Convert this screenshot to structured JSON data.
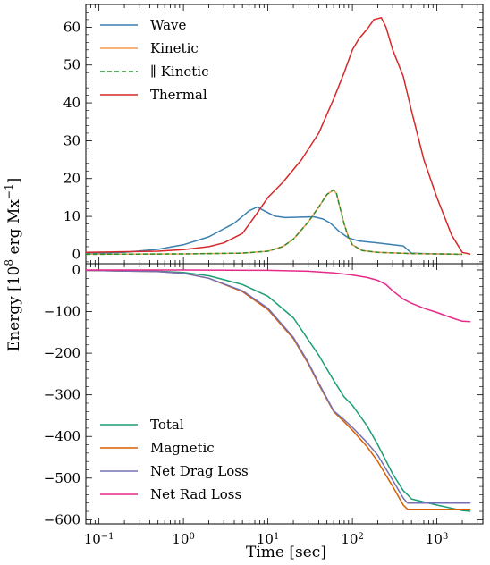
{
  "chart_data": [
    {
      "type": "line",
      "panel": "top",
      "xscale": "log",
      "xlim": [
        0.07,
        3500
      ],
      "ylim": [
        -2.5,
        66
      ],
      "yticks": [
        0,
        10,
        20,
        30,
        40,
        50,
        60
      ],
      "ytick_labels": [
        "0",
        "10",
        "20",
        "30",
        "40",
        "50",
        "60"
      ],
      "legend": "top-left",
      "series": [
        {
          "name": "Wave",
          "color": "#3a7fb0",
          "dash": "",
          "x": [
            0.07,
            0.2,
            0.5,
            1,
            2,
            4,
            6,
            7.5,
            9,
            12,
            16,
            25,
            35,
            45,
            55,
            70,
            90,
            120,
            200,
            400,
            450,
            500,
            700,
            1000,
            2000
          ],
          "y": [
            0.3,
            0.5,
            1.3,
            2.5,
            4.6,
            8.2,
            11.5,
            12.5,
            11.5,
            10.1,
            9.7,
            9.8,
            9.9,
            9.3,
            8.2,
            6.0,
            4.3,
            3.5,
            3.0,
            2.2,
            1.2,
            0.3,
            0.2,
            0.1,
            0.0
          ]
        },
        {
          "name": "Kinetic",
          "color": "#f39c4e",
          "dash": "",
          "x": [
            0.07,
            1,
            5,
            10,
            15,
            20,
            30,
            40,
            50,
            60,
            65,
            70,
            80,
            90,
            100,
            130,
            200,
            500,
            1000,
            2000
          ],
          "y": [
            0.0,
            0.1,
            0.3,
            0.8,
            2.0,
            4.0,
            8.5,
            12.5,
            15.8,
            17.0,
            16.0,
            13.0,
            8.0,
            4.5,
            2.5,
            1.0,
            0.5,
            0.2,
            0.1,
            0.0
          ]
        },
        {
          "name": "∥ Kinetic",
          "color": "#2e8b2e",
          "dash": "5,3",
          "x": [
            0.07,
            1,
            5,
            10,
            15,
            20,
            30,
            40,
            50,
            60,
            65,
            70,
            80,
            90,
            100,
            130,
            200,
            500,
            1000,
            2000
          ],
          "y": [
            0.0,
            0.1,
            0.3,
            0.8,
            2.0,
            4.0,
            8.5,
            12.5,
            15.8,
            17.0,
            16.0,
            13.0,
            8.0,
            4.5,
            2.5,
            1.0,
            0.5,
            0.2,
            0.1,
            0.0
          ]
        },
        {
          "name": "Thermal",
          "color": "#d62828",
          "dash": "",
          "x": [
            0.07,
            0.5,
            1,
            2,
            3,
            5,
            7,
            10,
            15,
            25,
            40,
            60,
            80,
            100,
            120,
            150,
            180,
            220,
            250,
            300,
            400,
            500,
            700,
            1000,
            1500,
            2000,
            2500
          ],
          "y": [
            0.5,
            0.8,
            1.2,
            2.0,
            3.0,
            5.5,
            10.0,
            15.0,
            19.0,
            25.0,
            32.0,
            41.0,
            48.0,
            54.0,
            57.0,
            59.5,
            62.0,
            62.5,
            60.0,
            54.0,
            47.0,
            38.0,
            25.0,
            15.0,
            5.0,
            0.5,
            0.0
          ]
        }
      ]
    },
    {
      "type": "line",
      "panel": "bottom",
      "xscale": "log",
      "xlim": [
        0.07,
        3500
      ],
      "ylim": [
        -610,
        15
      ],
      "yticks": [
        0,
        -100,
        -200,
        -300,
        -400,
        -500,
        -600
      ],
      "ytick_labels": [
        "0",
        "−100",
        "−200",
        "−300",
        "−400",
        "−500",
        "−600"
      ],
      "xticks": [
        0.1,
        1,
        10,
        100,
        1000
      ],
      "xtick_labels": [
        "10",
        "10",
        "10",
        "10",
        "10"
      ],
      "xtick_exponents": [
        "−1",
        "0",
        "1",
        "2",
        "3"
      ],
      "xlabel": "Time [sec]",
      "legend": "bottom-left",
      "series": [
        {
          "name": "Total",
          "color": "#1b9e77",
          "dash": "",
          "x": [
            0.07,
            0.5,
            1,
            2,
            5,
            10,
            20,
            40,
            60,
            80,
            100,
            150,
            200,
            300,
            400,
            450,
            500,
            1000,
            2000,
            2500
          ],
          "y": [
            -1,
            -3,
            -6,
            -14,
            -35,
            -63,
            -115,
            -205,
            -265,
            -305,
            -325,
            -375,
            -420,
            -490,
            -530,
            -540,
            -550,
            -565,
            -578,
            -580
          ]
        },
        {
          "name": "Magnetic",
          "color": "#d95f02",
          "dash": "",
          "x": [
            0.07,
            0.5,
            1,
            2,
            5,
            10,
            20,
            30,
            40,
            60,
            80,
            100,
            150,
            200,
            300,
            400,
            450,
            500,
            1000,
            2500
          ],
          "y": [
            -1,
            -4,
            -8,
            -20,
            -52,
            -95,
            -165,
            -225,
            -275,
            -340,
            -365,
            -385,
            -425,
            -460,
            -520,
            -565,
            -575,
            -575,
            -575,
            -575
          ]
        },
        {
          "name": "Net Drag Loss",
          "color": "#7570b3",
          "dash": "",
          "x": [
            0.07,
            0.5,
            1,
            2,
            5,
            10,
            20,
            30,
            40,
            60,
            80,
            100,
            150,
            200,
            300,
            400,
            450,
            500,
            1000,
            2500
          ],
          "y": [
            -1,
            -4,
            -8,
            -20,
            -50,
            -92,
            -162,
            -222,
            -272,
            -338,
            -360,
            -378,
            -415,
            -445,
            -505,
            -548,
            -560,
            -560,
            -560,
            -560
          ]
        },
        {
          "name": "Net Rad Loss",
          "color": "#e7298a",
          "dash": "",
          "x": [
            0.07,
            1,
            10,
            30,
            60,
            100,
            150,
            200,
            250,
            300,
            400,
            500,
            700,
            1000,
            1500,
            2000,
            2500
          ],
          "y": [
            0,
            0,
            -1,
            -3,
            -7,
            -12,
            -18,
            -25,
            -35,
            -50,
            -70,
            -80,
            -92,
            -102,
            -115,
            -123,
            -124
          ]
        }
      ]
    }
  ],
  "shared": {
    "ylabel_main": "Energy [10",
    "ylabel_sup": "8",
    "ylabel_mid": " erg Mx",
    "ylabel_sup2": "−1",
    "ylabel_end": "]"
  }
}
